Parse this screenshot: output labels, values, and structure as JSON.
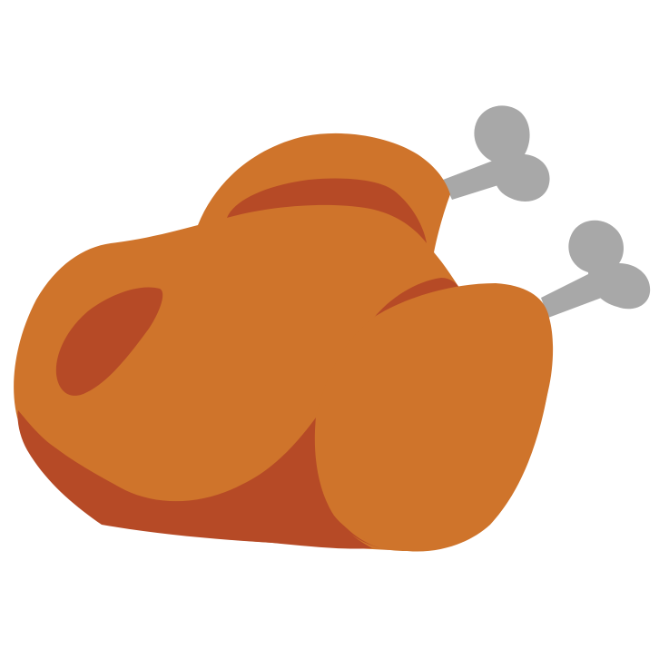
{
  "illustration": {
    "subject": "roast-turkey-icon",
    "colors": {
      "skin": "#CF742B",
      "shadow": "#B64A26",
      "bone": "#A8A8A8",
      "background": "#FFFFFF"
    }
  }
}
